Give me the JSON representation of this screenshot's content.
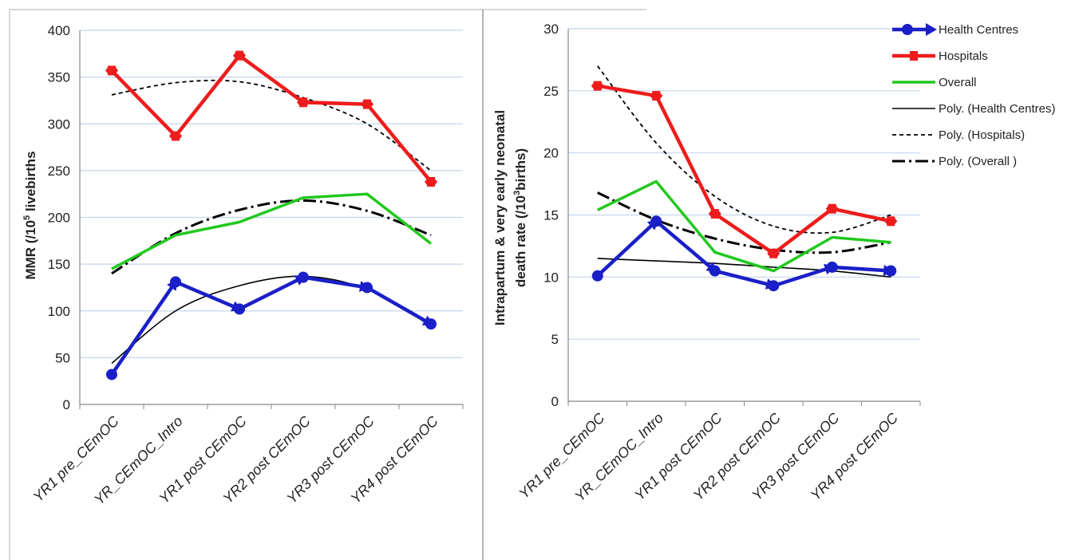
{
  "colors": {
    "health_centres": "#1a1fc8",
    "hospitals": "#ee1c1c",
    "overall": "#22c81e",
    "trend": "#000000",
    "grid": "#c5d5ea"
  },
  "chart_data": [
    {
      "type": "line",
      "ylabel_main": "MMR (/10",
      "ylabel_sup": "5",
      "ylabel_rest": " livebirths",
      "categories": [
        "YR1 pre_CEmOC",
        "YR_CEmOC_Intro",
        "YR1 post CEmOC",
        "YR2 post CEmOC",
        "YR3 post CEmOC",
        "YR4 post CEmOC"
      ],
      "ylim": [
        0,
        400
      ],
      "yticks": [
        "0",
        "50",
        "100",
        "150",
        "200",
        "250",
        "300",
        "350",
        "400"
      ],
      "grid": true,
      "series": [
        {
          "name": "Health Centres",
          "values": [
            32,
            131,
            102,
            136,
            125,
            86
          ]
        },
        {
          "name": "Hospitals",
          "values": [
            357,
            287,
            373,
            323,
            321,
            238
          ]
        },
        {
          "name": "Overall",
          "values": [
            145,
            181,
            195,
            221,
            225,
            172
          ]
        },
        {
          "name": "Poly. (Health Centres)",
          "values": [
            44,
            100,
            127,
            137,
            123,
            84
          ]
        },
        {
          "name": "Poly. (Hospitals)",
          "values": [
            331,
            344,
            345,
            328,
            300,
            250
          ]
        },
        {
          "name": "Poly. (Overall )",
          "values": [
            140,
            183,
            208,
            218,
            207,
            181
          ]
        }
      ]
    },
    {
      "type": "line",
      "ylabel_line1": "Intrapartum & very early neonatal",
      "ylabel_line2_main": "death rate (/10",
      "ylabel_line2_sup": "3",
      "ylabel_line2_rest": "births)",
      "categories": [
        "YR1 pre_CEmOC",
        "YR_CEmOC_Intro",
        "YR1 post CEmOC",
        "YR2 post CEmOC",
        "YR3 post CEmOC",
        "YR4 post CEmOC"
      ],
      "ylim": [
        0,
        30
      ],
      "yticks": [
        "0",
        "5",
        "10",
        "15",
        "20",
        "25",
        "30"
      ],
      "grid": true,
      "series": [
        {
          "name": "Health Centres",
          "values": [
            10.1,
            14.5,
            10.5,
            9.3,
            10.8,
            10.5
          ]
        },
        {
          "name": "Hospitals",
          "values": [
            25.4,
            24.6,
            15.1,
            11.9,
            15.5,
            14.5
          ]
        },
        {
          "name": "Overall",
          "values": [
            15.4,
            17.7,
            12.0,
            10.5,
            13.2,
            12.8
          ]
        },
        {
          "name": "Poly. (Health Centres)",
          "values": [
            11.5,
            11.3,
            11.1,
            10.8,
            10.5,
            10.0
          ]
        },
        {
          "name": "Poly. (Hospitals)",
          "values": [
            27.0,
            20.8,
            16.5,
            14.1,
            13.6,
            15.0
          ]
        },
        {
          "name": "Poly. (Overall )",
          "values": [
            16.8,
            14.6,
            13.1,
            12.2,
            12.0,
            12.8
          ]
        }
      ]
    }
  ],
  "legend": [
    {
      "name": "Health Centres",
      "kind": "health_centres"
    },
    {
      "name": "Hospitals",
      "kind": "hospitals"
    },
    {
      "name": "Overall",
      "kind": "overall"
    },
    {
      "name": "Poly. (Health Centres)",
      "kind": "poly_solid"
    },
    {
      "name": "Poly. (Hospitals)",
      "kind": "poly_dashed"
    },
    {
      "name": "Poly. (Overall )",
      "kind": "poly_dashdot"
    }
  ]
}
